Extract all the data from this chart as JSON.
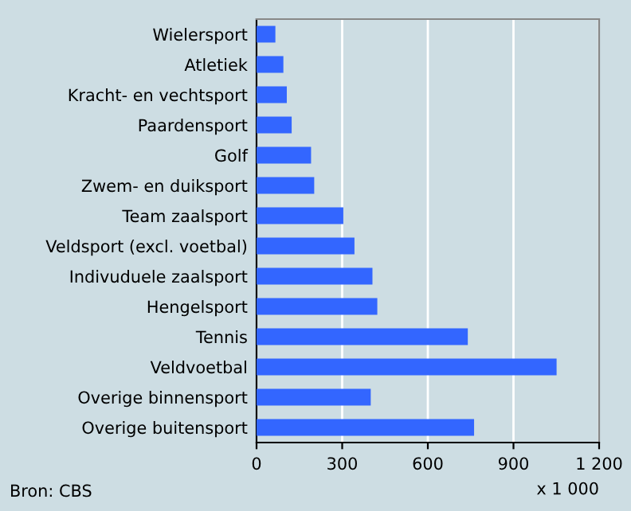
{
  "chart_data": {
    "type": "bar",
    "orientation": "horizontal",
    "categories": [
      "Wielersport",
      "Atletiek",
      "Kracht- en vechtsport",
      "Paardensport",
      "Golf",
      "Zwem- en duiksport",
      "Team zaalsport",
      "Veldsport (excl. voetbal)",
      "Indivuduele zaalsport",
      "Hengelsport",
      "Tennis",
      "Veldvoetbal",
      "Overige binnensport",
      "Overige buitensport"
    ],
    "values": [
      66,
      94,
      106,
      123,
      191,
      202,
      304,
      343,
      406,
      423,
      740,
      1051,
      400,
      762
    ],
    "color": "#3366ff",
    "xlim": [
      0,
      1200
    ],
    "xticks": [
      0,
      300,
      600,
      900,
      {
        "value": 1200,
        "label": "1 200"
      }
    ],
    "xlabel": "x 1 000",
    "grid": "x",
    "annotations": [
      "Bron: CBS"
    ]
  }
}
